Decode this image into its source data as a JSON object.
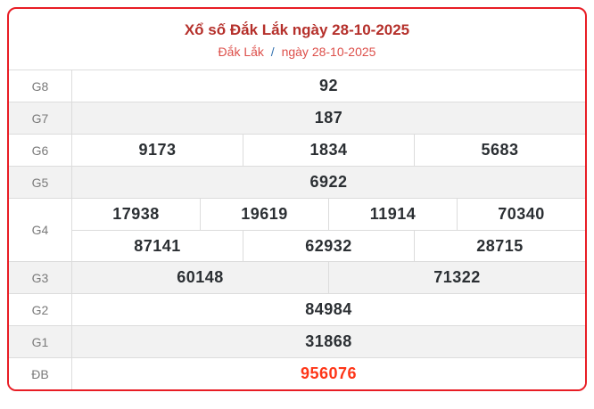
{
  "header": {
    "title": "Xổ số Đắk Lắk ngày 28-10-2025",
    "breadcrumb": {
      "region": "Đắk Lắk",
      "separator": "/",
      "date": "ngày 28-10-2025"
    }
  },
  "colors": {
    "card_border_red": "#e81d25",
    "title_red": "#b5302b",
    "breadcrumb_red": "#dd4f4a",
    "breadcrumb_blue": "#3572b0",
    "special_prize_red": "#fe3517",
    "shaded_row_bg": "#f2f2f2",
    "value_text": "#2b2f33",
    "label_text": "#7a7a7a",
    "divider": "#dcdcdc"
  },
  "table": {
    "rows": [
      {
        "label": "G8",
        "cells": [
          "92"
        ],
        "shaded": false,
        "special": false
      },
      {
        "label": "G7",
        "cells": [
          "187"
        ],
        "shaded": true,
        "special": false
      },
      {
        "label": "G6",
        "cells": [
          "9173",
          "1834",
          "5683"
        ],
        "shaded": false,
        "special": false
      },
      {
        "label": "G5",
        "cells": [
          "6922"
        ],
        "shaded": true,
        "special": false
      },
      {
        "label": "G4",
        "sub_rows": [
          [
            "17938",
            "19619",
            "11914",
            "70340"
          ],
          [
            "87141",
            "62932",
            "28715"
          ]
        ],
        "shaded": false,
        "special": false
      },
      {
        "label": "G3",
        "cells": [
          "60148",
          "71322"
        ],
        "shaded": true,
        "special": false
      },
      {
        "label": "G2",
        "cells": [
          "84984"
        ],
        "shaded": false,
        "special": false
      },
      {
        "label": "G1",
        "cells": [
          "31868"
        ],
        "shaded": true,
        "special": false
      },
      {
        "label": "ĐB",
        "cells": [
          "956076"
        ],
        "shaded": false,
        "special": true
      }
    ]
  }
}
